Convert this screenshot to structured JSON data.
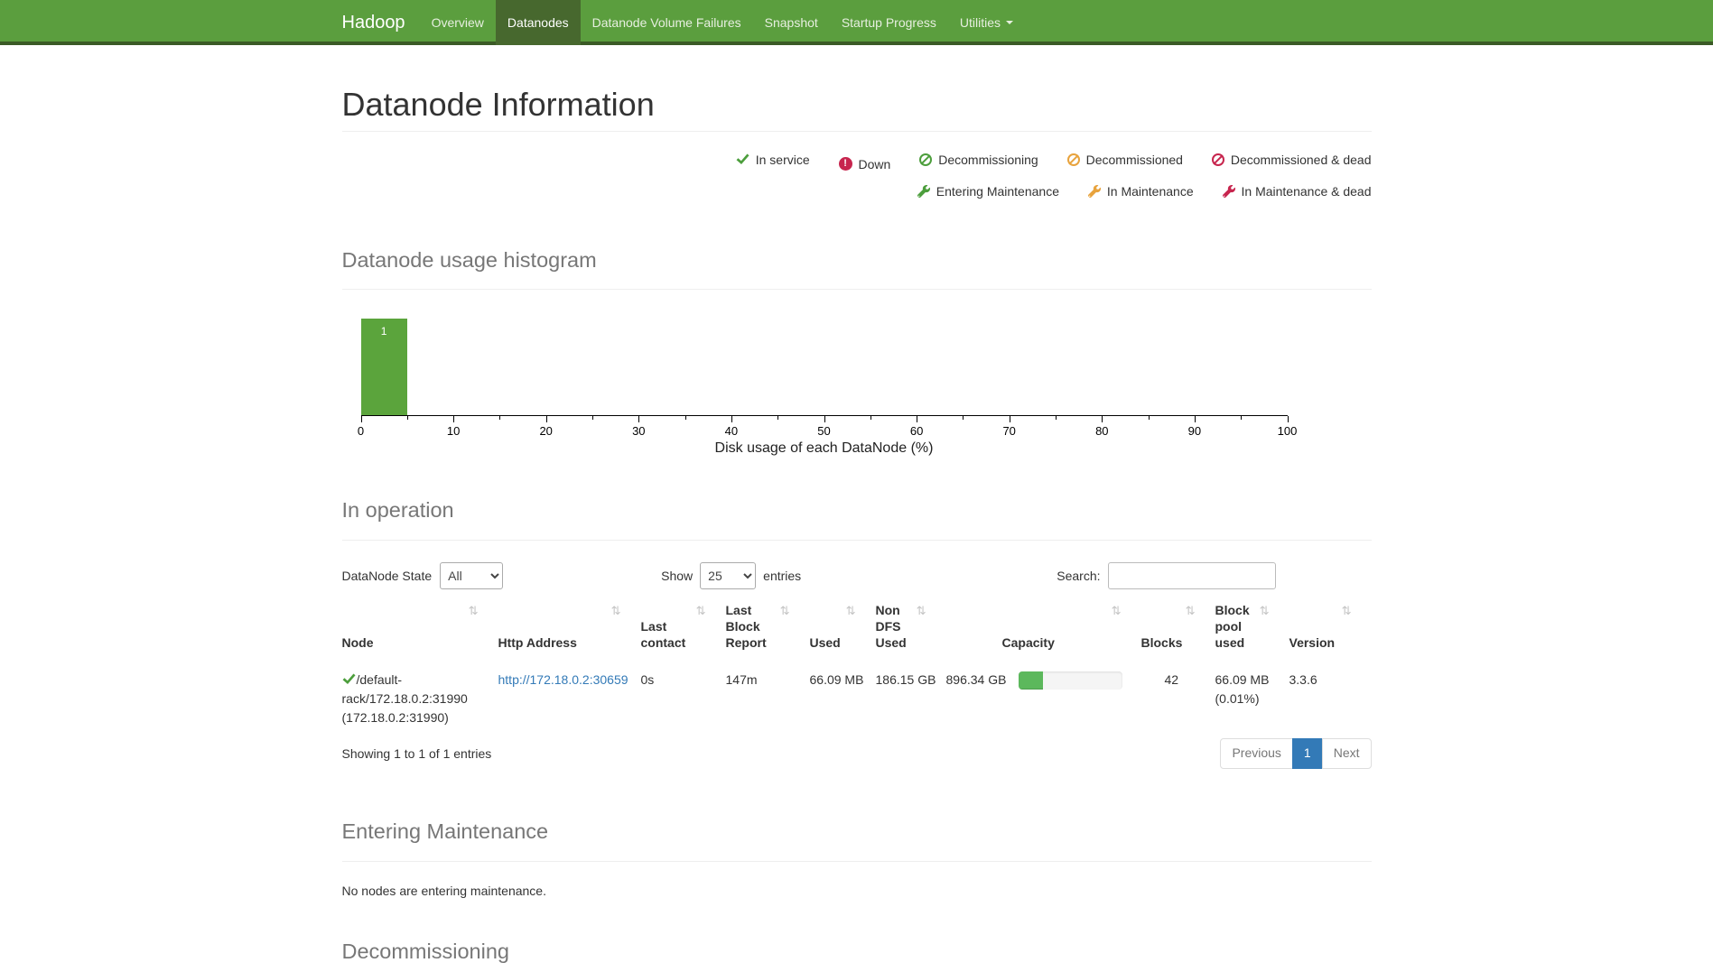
{
  "navbar": {
    "brand": "Hadoop",
    "items": [
      {
        "label": "Overview"
      },
      {
        "label": "Datanodes"
      },
      {
        "label": "Datanode Volume Failures"
      },
      {
        "label": "Snapshot"
      },
      {
        "label": "Startup Progress"
      },
      {
        "label": "Utilities"
      }
    ]
  },
  "page_title": "Datanode Information",
  "legend": {
    "in_service": "In service",
    "down": "Down",
    "down_icon_glyph": "!",
    "decommissioning": "Decommissioning",
    "decommissioned": "Decommissioned",
    "decommissioned_dead": "Decommissioned & dead",
    "entering_maintenance": "Entering Maintenance",
    "in_maintenance": "In Maintenance",
    "in_maintenance_dead": "In Maintenance & dead"
  },
  "histogram_section": {
    "title": "Datanode usage histogram",
    "chart_data": {
      "type": "bar",
      "title": "",
      "xlabel": "Disk usage of each DataNode (%)",
      "ylabel": "",
      "xlim": [
        0,
        100
      ],
      "grid": false,
      "xticks": [
        "0",
        "10",
        "20",
        "30",
        "40",
        "50",
        "60",
        "70",
        "80",
        "90",
        "100"
      ],
      "bins": [
        {
          "range": [
            0,
            5
          ],
          "count": 1
        }
      ],
      "bar_label": "1",
      "bar_color": "#5ba43c"
    }
  },
  "in_operation": {
    "title": "In operation",
    "controls": {
      "state_label": "DataNode State",
      "state_value": "All",
      "show_label": "Show",
      "show_value": "25",
      "entries_label": "entries",
      "search_label": "Search:",
      "search_value": ""
    },
    "columns": [
      "Node",
      "Http Address",
      "Last contact",
      "Last Block Report",
      "Used",
      "Non DFS Used",
      "Capacity",
      "Blocks",
      "Block pool used",
      "Version"
    ],
    "sort_icon_glyph": "⇅",
    "rows": [
      {
        "node": "/default-rack/172.18.0.2:31990 (172.18.0.2:31990)",
        "http_address": "http://172.18.0.2:30659",
        "last_contact": "0s",
        "last_block_report": "147m",
        "used": "66.09 MB",
        "non_dfs_used": "186.15 GB",
        "capacity": "896.34 GB",
        "capacity_used_pct": 23,
        "blocks": "42",
        "block_pool_used": "66.09 MB (0.01%)",
        "version": "3.3.6"
      }
    ],
    "footer": {
      "info": "Showing 1 to 1 of 1 entries",
      "previous": "Previous",
      "current_page": "1",
      "next": "Next"
    }
  },
  "entering_maintenance_section": {
    "title": "Entering Maintenance",
    "empty_message": "No nodes are entering maintenance."
  },
  "decommissioning_section": {
    "title": "Decommissioning"
  },
  "colors": {
    "navbar_bg": "#5b9e3e",
    "navbar_active_bg": "#47682e",
    "navbar_border": "#3b5a26",
    "status_green": "#4c9e3c",
    "status_orange": "#e8a33d",
    "status_red": "#c7254e",
    "histogram_bar": "#5ba43c",
    "progress_fill": "#5cb85c",
    "link": "#337ab7",
    "pagination_active_bg": "#337ab7"
  }
}
